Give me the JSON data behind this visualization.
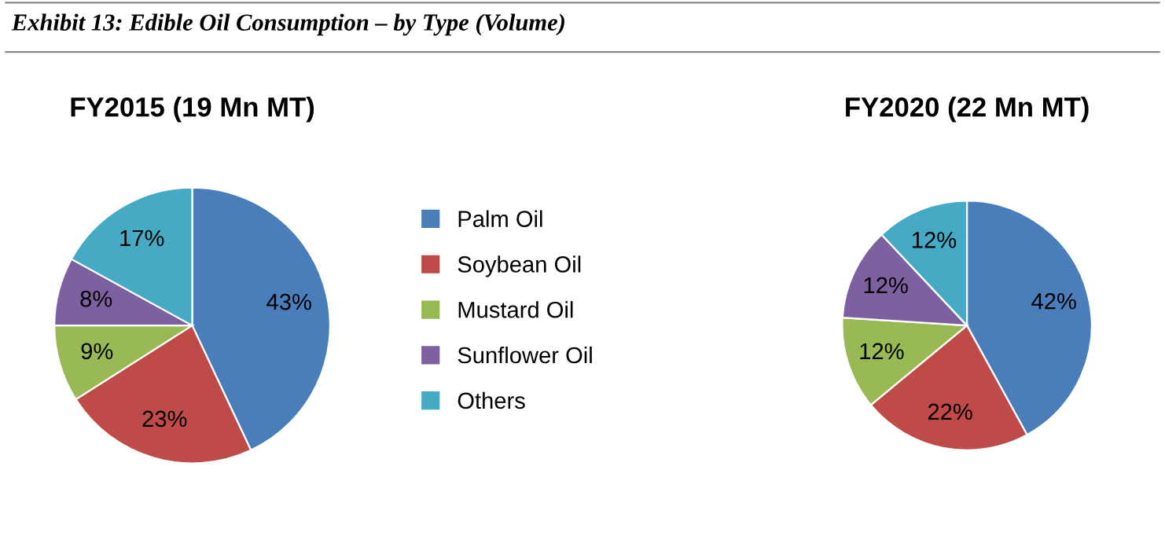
{
  "chart_data": [
    {
      "type": "other",
      "title": "Exhibit 13: Edible Oil Consumption – by Type (Volume)"
    },
    {
      "type": "pie",
      "title": "FY2015 (19 Mn MT)",
      "categories": [
        "Palm Oil",
        "Soybean Oil",
        "Mustard Oil",
        "Sunflower Oil",
        "Others"
      ],
      "values": [
        43,
        23,
        9,
        8,
        17
      ],
      "value_labels": [
        "43%",
        "23%",
        "9%",
        "8%",
        "17%"
      ],
      "colors": [
        "#4a7ebb",
        "#be4b48",
        "#98b954",
        "#7d60a0",
        "#46aac5"
      ],
      "legend": "right"
    },
    {
      "type": "pie",
      "title": "FY2020 (22 Mn MT)",
      "categories": [
        null,
        null,
        null,
        null,
        null
      ],
      "values": [
        42,
        22,
        12,
        12,
        12
      ],
      "value_labels": [
        "42%",
        "22%",
        "12%",
        "12%",
        "12%"
      ],
      "colors": [
        "#4a7ebb",
        "#be4b48",
        "#98b954",
        "#7d60a0",
        "#46aac5"
      ]
    }
  ]
}
